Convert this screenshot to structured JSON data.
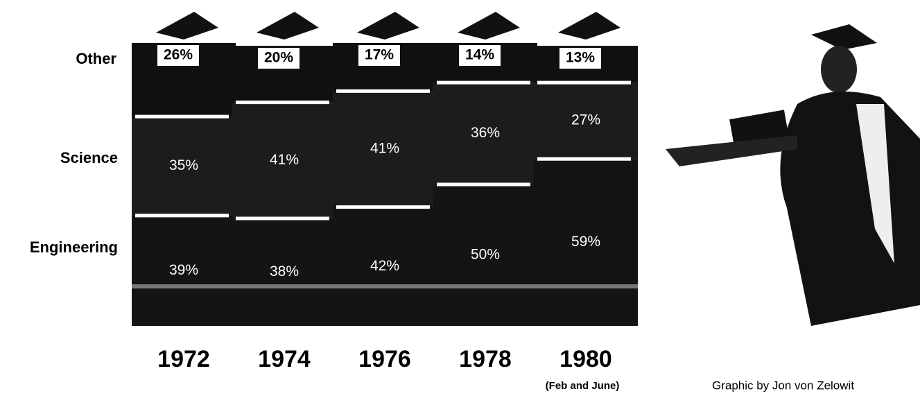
{
  "chart_data": {
    "type": "stacked-bar",
    "categories": [
      "1972",
      "1974",
      "1976",
      "1978",
      "1980"
    ],
    "category_note": "(Feb and June)",
    "credit": "Graphic by Jon von Zelowit",
    "ylim": [
      0,
      100
    ],
    "series": [
      {
        "name": "Engineering",
        "color": "#141414",
        "values": [
          39,
          38,
          42,
          50,
          59
        ],
        "value_labels": [
          "39%",
          "38%",
          "42%",
          "50%",
          "59%"
        ]
      },
      {
        "name": "Science",
        "color": "#1c1c1c",
        "values": [
          35,
          41,
          41,
          36,
          27
        ],
        "value_labels": [
          "35%",
          "41%",
          "41%",
          "36%",
          "27%"
        ]
      },
      {
        "name": "Other",
        "color": "#101010",
        "values": [
          26,
          20,
          17,
          14,
          13
        ],
        "value_labels": [
          "26%",
          "20%",
          "17%",
          "14%",
          "13%"
        ]
      }
    ]
  }
}
